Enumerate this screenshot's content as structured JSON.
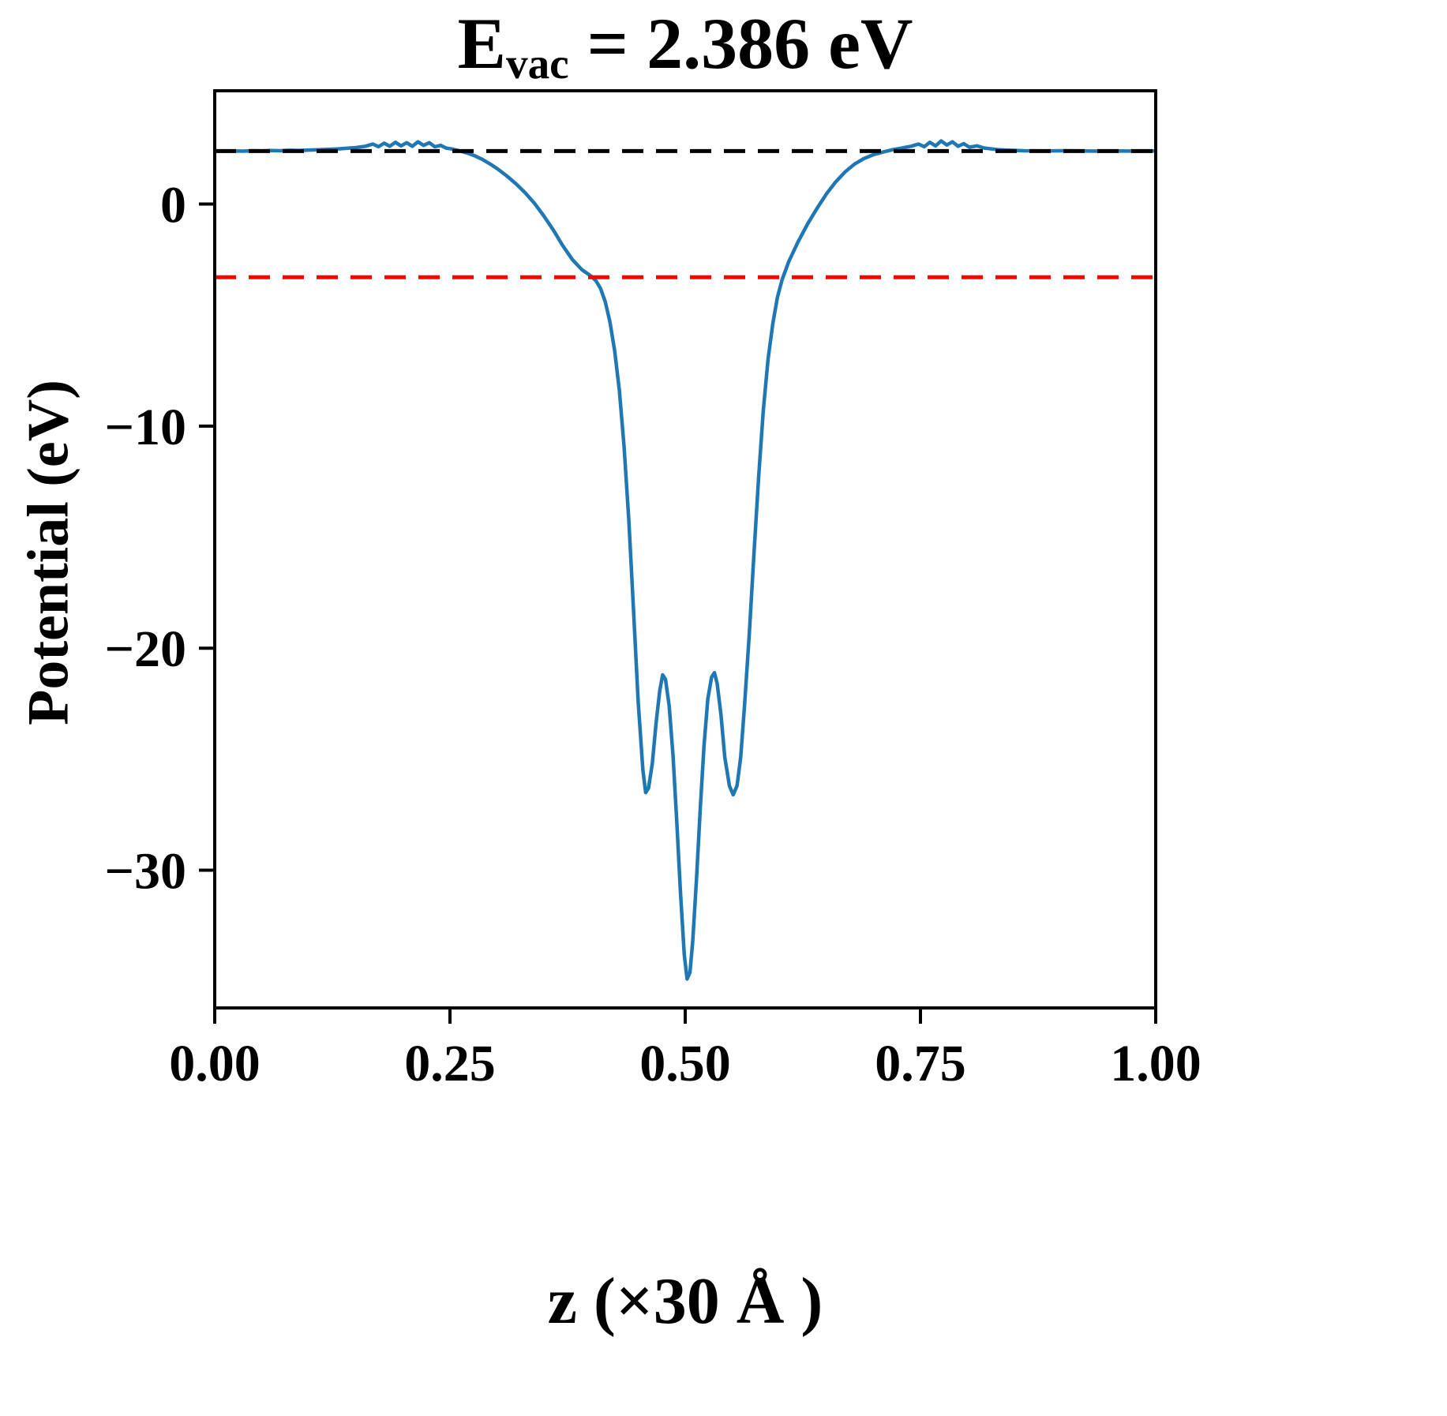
{
  "title": {
    "prefix": "E",
    "subscript": "vac",
    "suffix": " = 2.386 eV"
  },
  "chart_data": {
    "type": "line",
    "title": "E_vac = 2.386 eV",
    "xlabel": "z (×30 Å )",
    "ylabel": "Potential (eV)",
    "xlim": [
      0,
      1
    ],
    "ylim": [
      -36.2,
      5.1
    ],
    "xticks": [
      0,
      0.25,
      0.5,
      0.75,
      1.0
    ],
    "xtick_labels": [
      "0.00",
      "0.25",
      "0.50",
      "0.75",
      "1.00"
    ],
    "yticks": [
      0,
      -10,
      -20,
      -30
    ],
    "ytick_labels": [
      "0",
      "−10",
      "−20",
      "−30"
    ],
    "grid": false,
    "legend": "none",
    "E_vac_eV": 2.386,
    "hlines": [
      {
        "name": "vacuum-level-dashed-line",
        "y": 2.386,
        "color": "#000000",
        "style": "dashed"
      },
      {
        "name": "reference-level-dashed-line",
        "y": -3.3,
        "color": "#ff0000",
        "style": "dashed"
      }
    ],
    "series": [
      {
        "name": "planar-averaged-potential-curve",
        "color": "#1f77b4",
        "x": [
          0.0,
          0.01,
          0.02,
          0.03,
          0.04,
          0.05,
          0.06,
          0.07,
          0.08,
          0.09,
          0.1,
          0.11,
          0.12,
          0.13,
          0.14,
          0.15,
          0.16,
          0.168,
          0.174,
          0.18,
          0.186,
          0.192,
          0.198,
          0.204,
          0.21,
          0.216,
          0.222,
          0.228,
          0.234,
          0.24,
          0.246,
          0.252,
          0.26,
          0.268,
          0.276,
          0.284,
          0.292,
          0.3,
          0.31,
          0.32,
          0.33,
          0.34,
          0.35,
          0.36,
          0.37,
          0.38,
          0.39,
          0.4,
          0.405,
          0.41,
          0.415,
          0.42,
          0.425,
          0.43,
          0.435,
          0.44,
          0.445,
          0.45,
          0.455,
          0.458,
          0.461,
          0.465,
          0.469,
          0.473,
          0.476,
          0.479,
          0.483,
          0.487,
          0.491,
          0.495,
          0.499,
          0.502,
          0.505,
          0.508,
          0.512,
          0.516,
          0.52,
          0.524,
          0.528,
          0.531,
          0.534,
          0.538,
          0.542,
          0.547,
          0.551,
          0.555,
          0.559,
          0.563,
          0.568,
          0.573,
          0.578,
          0.583,
          0.588,
          0.593,
          0.598,
          0.603,
          0.61,
          0.62,
          0.63,
          0.64,
          0.65,
          0.66,
          0.67,
          0.68,
          0.69,
          0.7,
          0.71,
          0.72,
          0.73,
          0.74,
          0.748,
          0.754,
          0.76,
          0.766,
          0.772,
          0.778,
          0.784,
          0.79,
          0.796,
          0.802,
          0.81,
          0.818,
          0.826,
          0.834,
          0.845,
          0.86,
          0.88,
          0.9,
          0.92,
          0.94,
          0.96,
          0.98,
          1.0
        ],
        "y": [
          2.39,
          2.38,
          2.39,
          2.38,
          2.4,
          2.39,
          2.41,
          2.4,
          2.42,
          2.41,
          2.43,
          2.44,
          2.46,
          2.48,
          2.51,
          2.54,
          2.6,
          2.7,
          2.58,
          2.74,
          2.6,
          2.78,
          2.62,
          2.76,
          2.6,
          2.8,
          2.64,
          2.76,
          2.58,
          2.64,
          2.52,
          2.48,
          2.4,
          2.3,
          2.18,
          2.02,
          1.82,
          1.6,
          1.28,
          0.92,
          0.5,
          0.02,
          -0.55,
          -1.18,
          -1.88,
          -2.5,
          -2.95,
          -3.25,
          -3.45,
          -3.8,
          -4.4,
          -5.3,
          -6.6,
          -8.4,
          -10.9,
          -14.2,
          -18.2,
          -22.4,
          -25.5,
          -26.5,
          -26.3,
          -25.2,
          -23.4,
          -21.9,
          -21.2,
          -21.4,
          -22.6,
          -24.8,
          -27.8,
          -31.0,
          -33.8,
          -34.9,
          -34.6,
          -33.2,
          -30.4,
          -27.2,
          -24.4,
          -22.3,
          -21.3,
          -21.1,
          -21.6,
          -23.0,
          -24.9,
          -26.2,
          -26.6,
          -26.2,
          -24.9,
          -22.6,
          -19.4,
          -15.8,
          -12.3,
          -9.3,
          -7.0,
          -5.4,
          -4.2,
          -3.4,
          -2.6,
          -1.7,
          -0.9,
          -0.2,
          0.45,
          1.0,
          1.45,
          1.8,
          2.05,
          2.22,
          2.34,
          2.44,
          2.52,
          2.6,
          2.7,
          2.58,
          2.78,
          2.62,
          2.84,
          2.66,
          2.8,
          2.6,
          2.72,
          2.56,
          2.62,
          2.52,
          2.48,
          2.44,
          2.42,
          2.4,
          2.39,
          2.4,
          2.39,
          2.38,
          2.39,
          2.38,
          2.39
        ]
      }
    ]
  },
  "colors": {
    "curve": "#1f77b4",
    "vacuum_line": "#000000",
    "reference_line": "#ff0000",
    "axes": "#000000",
    "background": "#ffffff"
  }
}
